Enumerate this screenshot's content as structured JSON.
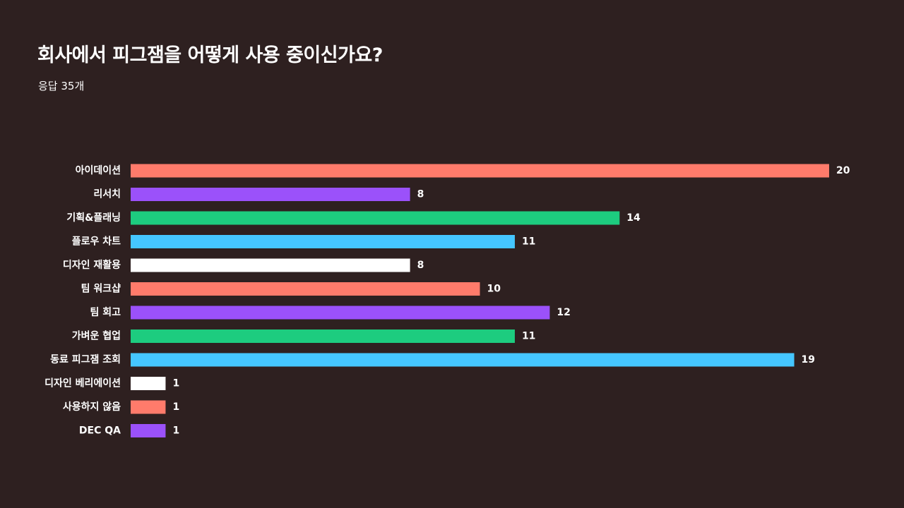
{
  "header": {
    "title": "회사에서 피그잼을 어떻게 사용 중이신가요?",
    "subtitle": "응답 35개"
  },
  "chart_data": {
    "type": "bar",
    "orientation": "horizontal",
    "title": "회사에서 피그잼을 어떻게 사용 중이신가요?",
    "subtitle": "응답 35개",
    "categories": [
      "아이데이션",
      "리서치",
      "기획&플래닝",
      "플로우 차트",
      "디자인 재활용",
      "팀 워크샵",
      "팀 회고",
      "가벼운 협업",
      "동료 피그잼 조회",
      "디자인 베리에이션",
      "사용하지 않음",
      "DEC QA"
    ],
    "values": [
      20,
      8,
      14,
      11,
      8,
      10,
      12,
      11,
      19,
      1,
      1,
      1
    ],
    "colors": [
      "#ff7b6b",
      "#9b51fa",
      "#1dcc7f",
      "#45c6ff",
      "#ffffff",
      "#ff7b6b",
      "#9b51fa",
      "#1dcc7f",
      "#45c6ff",
      "#ffffff",
      "#ff7b6b",
      "#9b51fa"
    ],
    "xlim": [
      0,
      20
    ],
    "grid": false,
    "data_labels": true
  },
  "colors": {
    "background": "#2e2020",
    "text": "#ffffff"
  }
}
